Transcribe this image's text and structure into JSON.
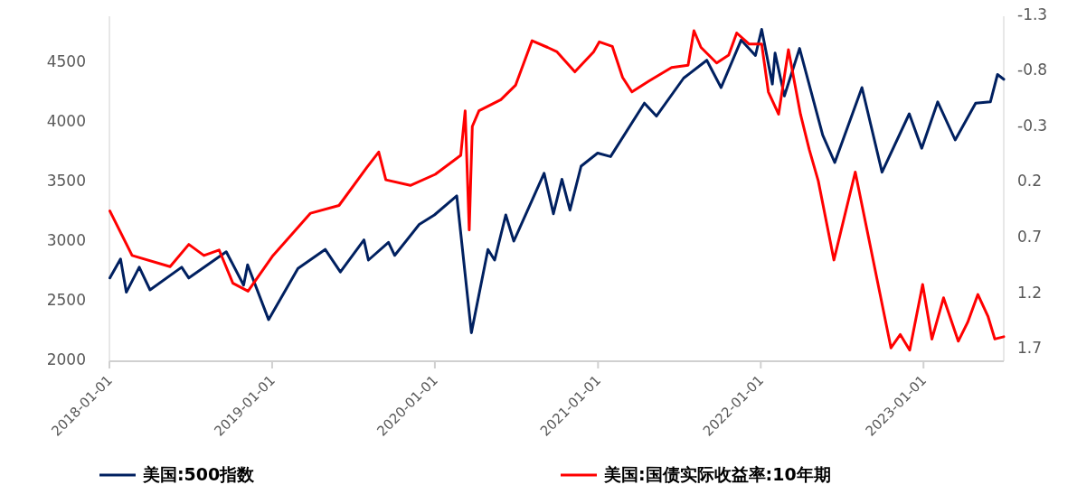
{
  "chart_data": {
    "type": "line",
    "xlim": [
      "2018-01-01",
      "2023-06-30"
    ],
    "xticks": [
      "2018-01-01",
      "2019-01-01",
      "2020-01-01",
      "2021-01-01",
      "2022-01-01",
      "2023-01-01"
    ],
    "ylim": [
      2000,
      4900
    ],
    "yticks": [
      2000,
      2500,
      3000,
      3500,
      4000,
      4500
    ],
    "y2lim": [
      1.8,
      -1.3
    ],
    "y2ticks": [
      -1.3,
      -0.8,
      -0.3,
      0.2,
      0.7,
      1.2,
      1.7
    ],
    "legend": "bottom",
    "grid": false,
    "series": [
      {
        "name": "美国:500指数",
        "color": "#002060",
        "x": [
          "2018-01-02",
          "2018-01-26",
          "2018-02-08",
          "2018-03-09",
          "2018-04-02",
          "2018-06-12",
          "2018-06-28",
          "2018-09-20",
          "2018-10-29",
          "2018-11-07",
          "2018-12-24",
          "2019-02-28",
          "2019-04-30",
          "2019-06-03",
          "2019-07-26",
          "2019-08-05",
          "2019-09-19",
          "2019-10-03",
          "2019-11-27",
          "2019-12-31",
          "2020-02-19",
          "2020-03-23",
          "2020-04-29",
          "2020-05-14",
          "2020-06-08",
          "2020-06-26",
          "2020-09-02",
          "2020-09-23",
          "2020-10-12",
          "2020-10-30",
          "2020-11-24",
          "2020-12-31",
          "2021-01-29",
          "2021-04-15",
          "2021-05-12",
          "2021-07-12",
          "2021-09-02",
          "2021-10-04",
          "2021-11-18",
          "2021-12-20",
          "2022-01-03",
          "2022-01-27",
          "2022-02-02",
          "2022-02-23",
          "2022-03-29",
          "2022-05-20",
          "2022-06-16",
          "2022-08-16",
          "2022-09-30",
          "2022-11-30",
          "2022-12-28",
          "2023-02-02",
          "2023-03-13",
          "2023-04-28",
          "2023-05-31",
          "2023-06-16",
          "2023-06-30"
        ],
        "values": [
          2700,
          2860,
          2580,
          2790,
          2600,
          2790,
          2700,
          2920,
          2640,
          2810,
          2350,
          2780,
          2940,
          2750,
          3020,
          2850,
          3000,
          2890,
          3150,
          3230,
          3390,
          2240,
          2940,
          2850,
          3230,
          3010,
          3580,
          3240,
          3530,
          3270,
          3640,
          3750,
          3720,
          4170,
          4060,
          4380,
          4530,
          4300,
          4700,
          4570,
          4790,
          4330,
          4590,
          4230,
          4630,
          3900,
          3670,
          4300,
          3590,
          4080,
          3790,
          4180,
          3860,
          4170,
          4180,
          4410,
          4370
        ]
      },
      {
        "name": "美国:国债实际收益率:10年期",
        "color": "#ff0000",
        "axis": "y2",
        "x": [
          "2018-01-02",
          "2018-02-21",
          "2018-05-17",
          "2018-06-28",
          "2018-08-01",
          "2018-09-04",
          "2018-10-05",
          "2018-11-08",
          "2019-01-03",
          "2019-03-28",
          "2019-05-31",
          "2019-08-01",
          "2019-08-28",
          "2019-09-13",
          "2019-11-07",
          "2020-01-02",
          "2020-02-28",
          "2020-03-09",
          "2020-03-18",
          "2020-03-25",
          "2020-04-09",
          "2020-05-28",
          "2020-06-30",
          "2020-08-06",
          "2020-09-10",
          "2020-10-01",
          "2020-11-10",
          "2020-12-22",
          "2021-01-04",
          "2021-02-02",
          "2021-02-25",
          "2021-03-18",
          "2021-04-26",
          "2021-06-15",
          "2021-07-22",
          "2021-08-04",
          "2021-08-20",
          "2021-09-24",
          "2021-10-21",
          "2021-11-08",
          "2021-12-06",
          "2022-01-03",
          "2022-01-18",
          "2022-02-10",
          "2022-03-04",
          "2022-03-31",
          "2022-04-20",
          "2022-05-10",
          "2022-06-14",
          "2022-08-01",
          "2022-10-20",
          "2022-11-10",
          "2022-12-01",
          "2022-12-30",
          "2023-01-20",
          "2023-02-15",
          "2023-03-20",
          "2023-04-10",
          "2023-05-03",
          "2023-05-26",
          "2023-06-10",
          "2023-06-30"
        ],
        "values": [
          0.45,
          0.85,
          0.95,
          0.75,
          0.85,
          0.8,
          1.1,
          1.17,
          0.85,
          0.47,
          0.4,
          0.06,
          -0.08,
          0.17,
          0.22,
          0.12,
          -0.05,
          -0.45,
          0.62,
          -0.31,
          -0.45,
          -0.55,
          -0.68,
          -1.08,
          -1.02,
          -0.98,
          -0.8,
          -0.98,
          -1.07,
          -1.03,
          -0.75,
          -0.62,
          -0.72,
          -0.84,
          -0.86,
          -1.17,
          -1.02,
          -0.88,
          -0.95,
          -1.15,
          -1.05,
          -1.05,
          -0.62,
          -0.42,
          -1.0,
          -0.42,
          -0.1,
          0.18,
          0.89,
          0.1,
          1.68,
          1.56,
          1.7,
          1.11,
          1.6,
          1.23,
          1.62,
          1.45,
          1.2,
          1.4,
          1.6,
          1.58
        ]
      }
    ]
  }
}
